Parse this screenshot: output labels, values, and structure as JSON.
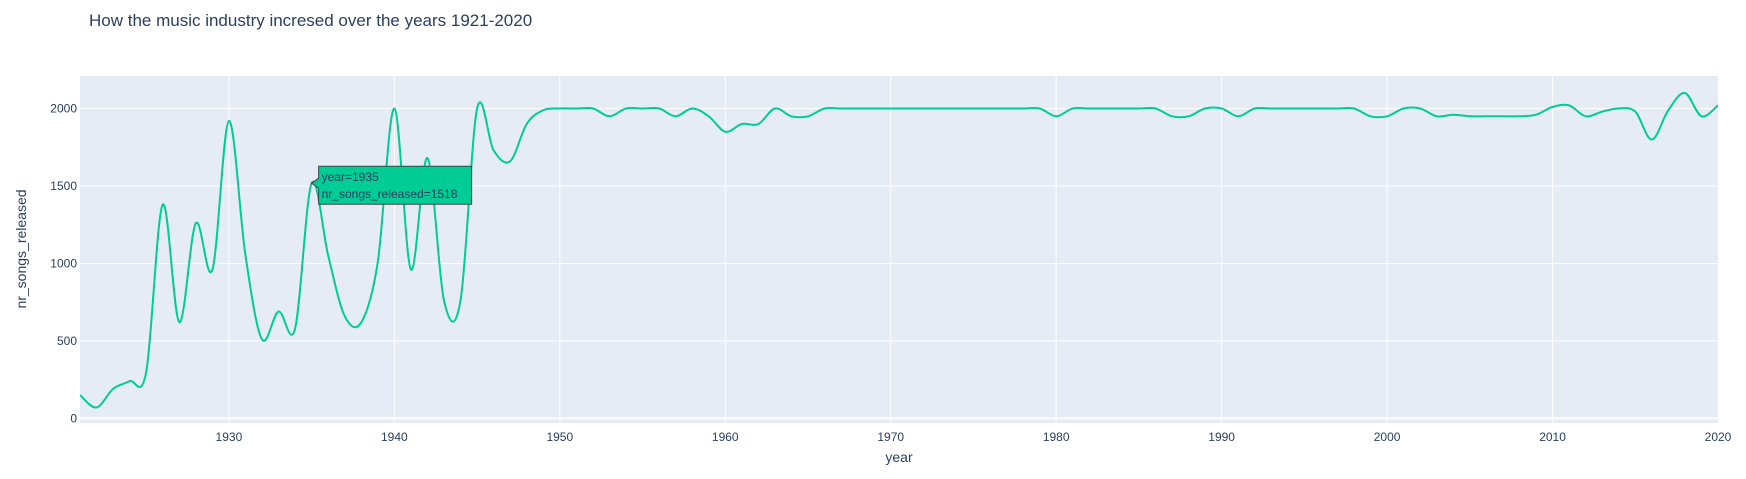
{
  "chart_data": {
    "type": "line",
    "title": "How the music industry incresed over the years 1921-2020",
    "xlabel": "year",
    "ylabel": "nr_songs_released",
    "xlim": [
      1921,
      2020
    ],
    "ylim": [
      -30,
      2210
    ],
    "grid": true,
    "line_shape": "spline",
    "x_ticks": [
      1930,
      1940,
      1950,
      1960,
      1970,
      1980,
      1990,
      2000,
      2010,
      2020
    ],
    "y_ticks": [
      0,
      500,
      1000,
      1500,
      2000
    ],
    "series": [
      {
        "color": "#00cc96",
        "x": [
          1921,
          1922,
          1923,
          1924,
          1925,
          1926,
          1927,
          1928,
          1929,
          1930,
          1931,
          1932,
          1933,
          1934,
          1935,
          1936,
          1937,
          1938,
          1939,
          1940,
          1941,
          1942,
          1943,
          1944,
          1945,
          1946,
          1947,
          1948,
          1949,
          1950,
          1951,
          1952,
          1953,
          1954,
          1955,
          1956,
          1957,
          1958,
          1959,
          1960,
          1961,
          1962,
          1963,
          1964,
          1965,
          1966,
          1967,
          1968,
          1969,
          1970,
          1971,
          1972,
          1973,
          1974,
          1975,
          1976,
          1977,
          1978,
          1979,
          1980,
          1981,
          1982,
          1983,
          1984,
          1985,
          1986,
          1987,
          1988,
          1989,
          1990,
          1991,
          1992,
          1993,
          1994,
          1995,
          1996,
          1997,
          1998,
          1999,
          2000,
          2001,
          2002,
          2003,
          2004,
          2005,
          2006,
          2007,
          2008,
          2009,
          2010,
          2011,
          2012,
          2013,
          2014,
          2015,
          2016,
          2017,
          2018,
          2019,
          2020
        ],
        "y": [
          150,
          70,
          190,
          240,
          300,
          1380,
          620,
          1260,
          960,
          1920,
          1050,
          510,
          690,
          580,
          1518,
          1050,
          660,
          620,
          1010,
          2000,
          960,
          1680,
          760,
          760,
          2000,
          1730,
          1660,
          1900,
          1990,
          2000,
          2000,
          2000,
          1950,
          2000,
          2000,
          2000,
          1950,
          2000,
          1950,
          1850,
          1900,
          1900,
          2000,
          1950,
          1950,
          2000,
          2000,
          2000,
          2000,
          2000,
          2000,
          2000,
          2000,
          2000,
          2000,
          2000,
          2000,
          2000,
          2000,
          1950,
          2000,
          2000,
          2000,
          2000,
          2000,
          2000,
          1950,
          1950,
          2000,
          2000,
          1950,
          2000,
          2000,
          2000,
          2000,
          2000,
          2000,
          2000,
          1950,
          1950,
          2000,
          2000,
          1950,
          1960,
          1950,
          1950,
          1950,
          1950,
          1960,
          2010,
          2020,
          1950,
          1980,
          2000,
          1980,
          1800,
          1990,
          2100,
          1950,
          2020
        ]
      }
    ],
    "hover": {
      "year_label": "year=1935",
      "value_label": "nr_songs_released=1518",
      "x": 1935,
      "y": 1518,
      "bgcolor": "#00cc96"
    }
  }
}
